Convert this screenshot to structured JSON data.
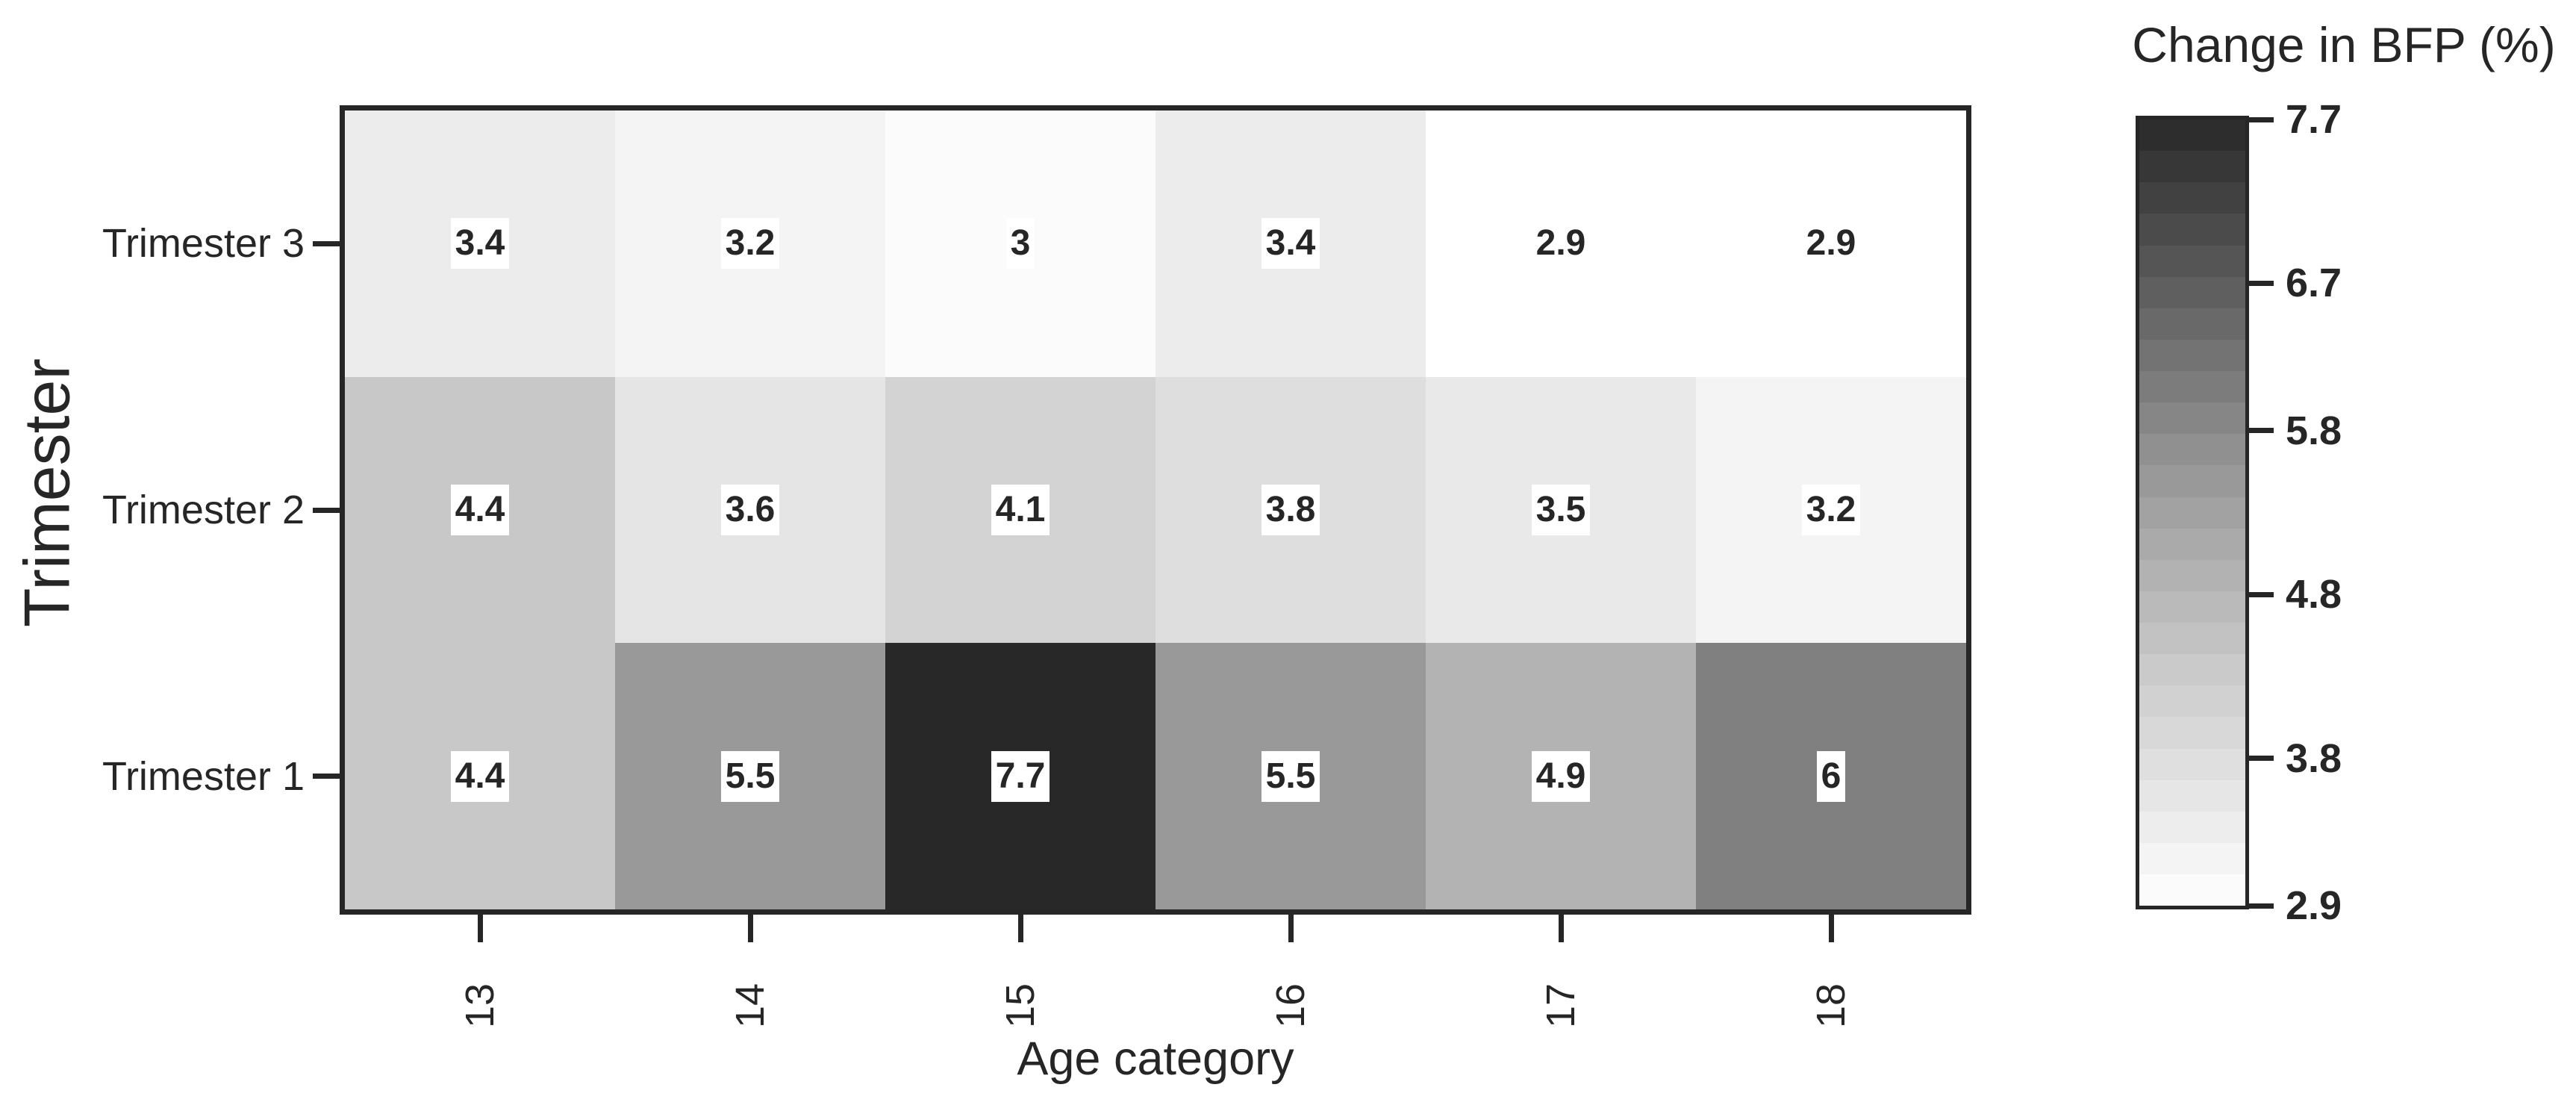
{
  "chart_data": {
    "type": "heatmap",
    "title": "",
    "colorbar_title": "Change in BFP (%)",
    "xlabel": "Age category",
    "ylabel": "Trimester",
    "x_categories": [
      "13",
      "14",
      "15",
      "16",
      "17",
      "18"
    ],
    "y_categories_top_to_bottom": [
      "Trimester 3",
      "Trimester 2",
      "Trimester 1"
    ],
    "rows": [
      {
        "label": "Trimester 3",
        "values": [
          3.4,
          3.2,
          3.0,
          3.4,
          2.9,
          2.9
        ],
        "annotations": [
          "3.4",
          "3.2",
          "3",
          "3.4",
          "2.9",
          "2.9"
        ]
      },
      {
        "label": "Trimester 2",
        "values": [
          4.4,
          3.6,
          4.1,
          3.8,
          3.5,
          3.2
        ],
        "annotations": [
          "4.4",
          "3.6",
          "4.1",
          "3.8",
          "3.5",
          "3.2"
        ]
      },
      {
        "label": "Trimester 1",
        "values": [
          4.4,
          5.5,
          7.7,
          5.5,
          4.9,
          6.0
        ],
        "annotations": [
          "4.4",
          "5.5",
          "7.7",
          "5.5",
          "4.9",
          "6"
        ]
      }
    ],
    "value_range": [
      2.9,
      7.7
    ],
    "colormap": "Greys_reversed_light_to_dark",
    "colorbar": {
      "tick_labels": [
        "7.7",
        "6.7",
        "5.8",
        "4.8",
        "3.8",
        "2.9"
      ],
      "tick_values": [
        7.7,
        6.7,
        5.8,
        4.8,
        3.8,
        2.9
      ],
      "n_discrete_bands": 25,
      "orientation": "vertical",
      "position": "right"
    },
    "layout_hints": {
      "grid": false,
      "x_tick_rotation_deg": 90,
      "annotation_background": "#ffffff"
    },
    "colors": {
      "background": "#ffffff",
      "spine": "#262626",
      "text": "#262626",
      "value_gray_anchors": [
        [
          2.9,
          255
        ],
        [
          3.0,
          251
        ],
        [
          4.4,
          200
        ],
        [
          4.9,
          179
        ],
        [
          5.5,
          153
        ],
        [
          6.0,
          128
        ],
        [
          7.7,
          40
        ]
      ]
    }
  }
}
